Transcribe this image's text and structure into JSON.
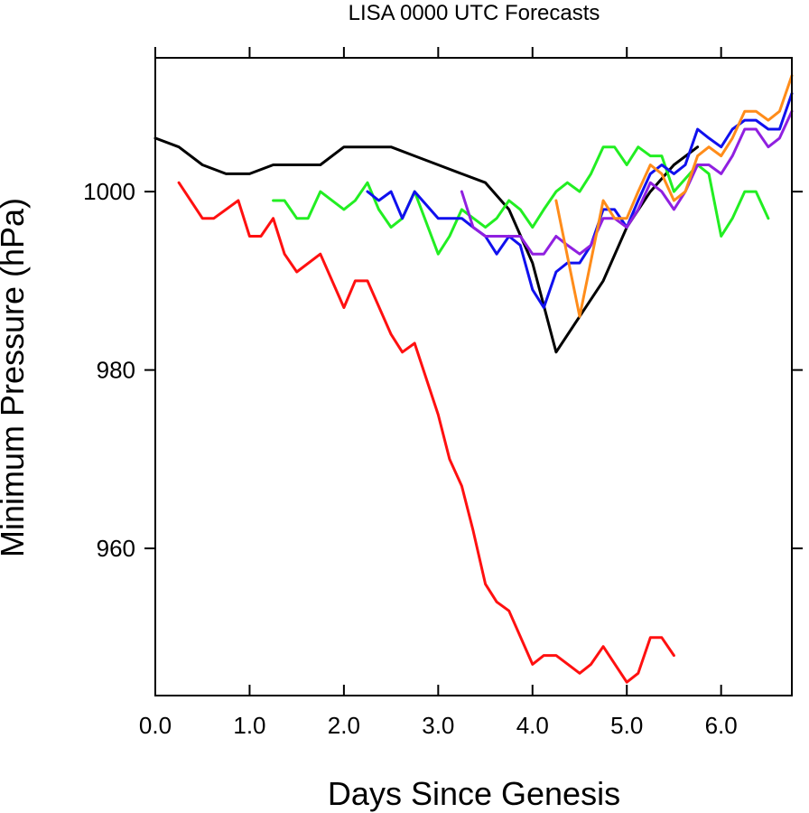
{
  "chart_data": {
    "type": "line",
    "title": "LISA 0000 UTC Forecasts",
    "xlabel": "Days Since Genesis",
    "ylabel": "Minimum Pressure (hPa)",
    "xlim": [
      0.0,
      6.75
    ],
    "ylim": [
      943.5,
      1015.0
    ],
    "x_ticks": [
      0.0,
      1.0,
      2.0,
      3.0,
      4.0,
      5.0,
      6.0
    ],
    "x_tick_labels": [
      "0.0",
      "1.0",
      "2.0",
      "3.0",
      "4.0",
      "5.0",
      "6.0"
    ],
    "y_ticks": [
      960,
      980,
      1000
    ],
    "y_tick_labels": [
      "960",
      "980",
      "1000"
    ],
    "grid": false,
    "legend": "none",
    "series": [
      {
        "color": "#000000",
        "points": [
          [
            0.0,
            1006
          ],
          [
            0.25,
            1005
          ],
          [
            0.5,
            1003
          ],
          [
            0.75,
            1002
          ],
          [
            1.0,
            1002
          ],
          [
            1.25,
            1003
          ],
          [
            1.5,
            1003
          ],
          [
            1.75,
            1003
          ],
          [
            2.0,
            1005
          ],
          [
            2.25,
            1005
          ],
          [
            2.5,
            1005
          ],
          [
            2.75,
            1004
          ],
          [
            3.0,
            1003
          ],
          [
            3.25,
            1002
          ],
          [
            3.5,
            1001
          ],
          [
            3.75,
            998
          ],
          [
            4.0,
            992
          ],
          [
            4.25,
            982
          ],
          [
            4.5,
            986
          ],
          [
            4.75,
            990
          ],
          [
            5.0,
            996
          ],
          [
            5.25,
            1000
          ],
          [
            5.5,
            1003
          ],
          [
            5.75,
            1005
          ]
        ]
      },
      {
        "color": "#ff1010",
        "points": [
          [
            0.25,
            1001
          ],
          [
            0.5,
            997
          ],
          [
            0.62,
            997
          ],
          [
            0.88,
            999
          ],
          [
            1.0,
            995
          ],
          [
            1.12,
            995
          ],
          [
            1.25,
            997
          ],
          [
            1.37,
            993
          ],
          [
            1.5,
            991
          ],
          [
            1.75,
            993
          ],
          [
            2.0,
            987
          ],
          [
            2.12,
            990
          ],
          [
            2.25,
            990
          ],
          [
            2.5,
            984
          ],
          [
            2.62,
            982
          ],
          [
            2.75,
            983
          ],
          [
            3.0,
            975
          ],
          [
            3.12,
            970
          ],
          [
            3.25,
            967
          ],
          [
            3.37,
            962
          ],
          [
            3.5,
            956
          ],
          [
            3.62,
            954
          ],
          [
            3.75,
            953
          ],
          [
            4.0,
            947
          ],
          [
            4.12,
            948
          ],
          [
            4.25,
            948
          ],
          [
            4.5,
            946
          ],
          [
            4.62,
            947
          ],
          [
            4.75,
            949
          ],
          [
            5.0,
            945
          ],
          [
            5.12,
            946
          ],
          [
            5.25,
            950
          ],
          [
            5.37,
            950
          ],
          [
            5.5,
            948
          ]
        ]
      },
      {
        "color": "#22ee22",
        "points": [
          [
            1.25,
            999
          ],
          [
            1.37,
            999
          ],
          [
            1.5,
            997
          ],
          [
            1.62,
            997
          ],
          [
            1.75,
            1000
          ],
          [
            2.0,
            998
          ],
          [
            2.12,
            999
          ],
          [
            2.25,
            1001
          ],
          [
            2.37,
            998
          ],
          [
            2.5,
            996
          ],
          [
            2.62,
            997
          ],
          [
            2.75,
            1000
          ],
          [
            3.0,
            993
          ],
          [
            3.12,
            995
          ],
          [
            3.25,
            998
          ],
          [
            3.5,
            996
          ],
          [
            3.62,
            997
          ],
          [
            3.75,
            999
          ],
          [
            3.87,
            998
          ],
          [
            4.0,
            996
          ],
          [
            4.12,
            998
          ],
          [
            4.25,
            1000
          ],
          [
            4.37,
            1001
          ],
          [
            4.5,
            1000
          ],
          [
            4.62,
            1002
          ],
          [
            4.75,
            1005
          ],
          [
            4.87,
            1005
          ],
          [
            5.0,
            1003
          ],
          [
            5.12,
            1005
          ],
          [
            5.25,
            1004
          ],
          [
            5.37,
            1004
          ],
          [
            5.5,
            1000
          ],
          [
            5.75,
            1003
          ],
          [
            5.87,
            1002
          ],
          [
            6.0,
            995
          ],
          [
            6.12,
            997
          ],
          [
            6.25,
            1000
          ],
          [
            6.37,
            1000
          ],
          [
            6.5,
            997
          ]
        ]
      },
      {
        "color": "#1010ee",
        "points": [
          [
            2.25,
            1000
          ],
          [
            2.37,
            999
          ],
          [
            2.5,
            1000
          ],
          [
            2.62,
            997
          ],
          [
            2.75,
            1000
          ],
          [
            3.0,
            997
          ],
          [
            3.12,
            997
          ],
          [
            3.25,
            997
          ],
          [
            3.37,
            996
          ],
          [
            3.5,
            995
          ],
          [
            3.62,
            993
          ],
          [
            3.75,
            995
          ],
          [
            3.87,
            994
          ],
          [
            4.0,
            989
          ],
          [
            4.12,
            987
          ],
          [
            4.25,
            991
          ],
          [
            4.37,
            992
          ],
          [
            4.5,
            992
          ],
          [
            4.62,
            994
          ],
          [
            4.75,
            998
          ],
          [
            4.87,
            998
          ],
          [
            5.0,
            996
          ],
          [
            5.12,
            999
          ],
          [
            5.25,
            1002
          ],
          [
            5.37,
            1003
          ],
          [
            5.5,
            1002
          ],
          [
            5.62,
            1003
          ],
          [
            5.75,
            1007
          ],
          [
            5.87,
            1006
          ],
          [
            6.0,
            1005
          ],
          [
            6.12,
            1007
          ],
          [
            6.25,
            1008
          ],
          [
            6.37,
            1008
          ],
          [
            6.5,
            1007
          ],
          [
            6.62,
            1007
          ],
          [
            6.75,
            1011
          ]
        ]
      },
      {
        "color": "#9020e0",
        "points": [
          [
            3.25,
            1000
          ],
          [
            3.37,
            996
          ],
          [
            3.5,
            995
          ],
          [
            3.62,
            995
          ],
          [
            3.75,
            995
          ],
          [
            3.87,
            995
          ],
          [
            4.0,
            993
          ],
          [
            4.12,
            993
          ],
          [
            4.25,
            995
          ],
          [
            4.37,
            994
          ],
          [
            4.5,
            993
          ],
          [
            4.62,
            994
          ],
          [
            4.75,
            997
          ],
          [
            4.87,
            997
          ],
          [
            5.0,
            996
          ],
          [
            5.12,
            998
          ],
          [
            5.25,
            1001
          ],
          [
            5.37,
            1000
          ],
          [
            5.5,
            998
          ],
          [
            5.62,
            1000
          ],
          [
            5.75,
            1003
          ],
          [
            5.87,
            1003
          ],
          [
            6.0,
            1002
          ],
          [
            6.12,
            1004
          ],
          [
            6.25,
            1007
          ],
          [
            6.37,
            1007
          ],
          [
            6.5,
            1005
          ],
          [
            6.62,
            1006
          ],
          [
            6.75,
            1009
          ]
        ]
      },
      {
        "color": "#ff8c1a",
        "points": [
          [
            4.25,
            999
          ],
          [
            4.5,
            986
          ],
          [
            4.75,
            999
          ],
          [
            4.87,
            997
          ],
          [
            5.0,
            997
          ],
          [
            5.12,
            1000
          ],
          [
            5.25,
            1003
          ],
          [
            5.37,
            1002
          ],
          [
            5.5,
            999
          ],
          [
            5.62,
            1000
          ],
          [
            5.75,
            1004
          ],
          [
            5.87,
            1005
          ],
          [
            6.0,
            1004
          ],
          [
            6.12,
            1006
          ],
          [
            6.25,
            1009
          ],
          [
            6.37,
            1009
          ],
          [
            6.5,
            1008
          ],
          [
            6.62,
            1009
          ],
          [
            6.75,
            1013
          ]
        ]
      }
    ]
  }
}
